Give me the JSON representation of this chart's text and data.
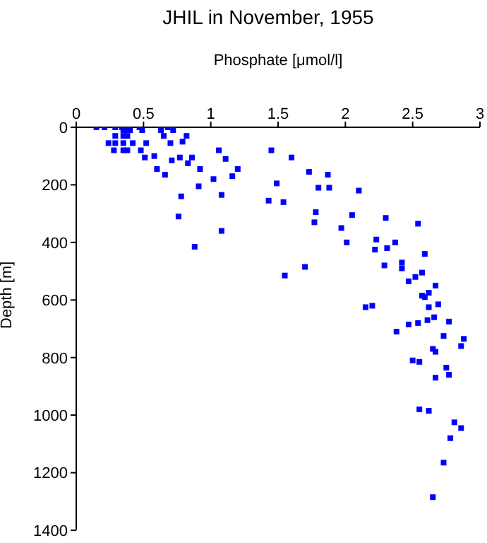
{
  "chart_data": {
    "type": "scatter",
    "title": "JHIL in November, 1955",
    "xlabel": "Phosphate [μmol/l]",
    "ylabel": "Depth [m]",
    "xlim": [
      0,
      3
    ],
    "xticks": [
      0,
      0.5,
      1,
      1.5,
      2,
      2.5,
      3
    ],
    "ylim": [
      1400,
      0
    ],
    "yticks": [
      0,
      200,
      400,
      600,
      800,
      1000,
      1200,
      1400
    ],
    "grid": false,
    "marker": "square",
    "series": [
      {
        "color": "#0000ff",
        "x": [
          0.15,
          0.21,
          0.29,
          0.34,
          0.47,
          0.68,
          0.72,
          0.63,
          0.49,
          0.38,
          0.35,
          0.4,
          0.29,
          0.35,
          0.38,
          0.65,
          0.82,
          0.24,
          0.29,
          0.35,
          0.42,
          0.52,
          0.7,
          0.79,
          0.28,
          0.35,
          0.38,
          0.48,
          1.06,
          1.45,
          0.51,
          0.58,
          0.71,
          0.77,
          0.86,
          0.83,
          1.11,
          0.6,
          0.66,
          0.92,
          1.2,
          1.16,
          1.02,
          0.91,
          1.49,
          0.78,
          1.08,
          1.43,
          0.76,
          1.08,
          0.88,
          1.6,
          1.73,
          1.87,
          1.8,
          1.88,
          2.1,
          1.54,
          1.78,
          2.05,
          1.77,
          2.3,
          2.54,
          1.97,
          2.01,
          2.23,
          2.22,
          2.31,
          2.37,
          2.59,
          1.7,
          1.55,
          2.29,
          2.42,
          2.42,
          2.52,
          2.57,
          2.47,
          2.67,
          2.62,
          2.57,
          2.59,
          2.15,
          2.2,
          2.62,
          2.69,
          2.77,
          2.61,
          2.66,
          2.54,
          2.47,
          2.38,
          2.73,
          2.88,
          2.86,
          2.65,
          2.67,
          2.5,
          2.55,
          2.75,
          2.67,
          2.77,
          2.55,
          2.62,
          2.81,
          2.86,
          2.78,
          2.73,
          2.65
        ],
        "values": [
          0,
          0,
          0,
          0,
          0,
          0,
          10,
          10,
          10,
          10,
          10,
          10,
          30,
          30,
          30,
          30,
          30,
          55,
          55,
          55,
          55,
          55,
          55,
          50,
          80,
          80,
          80,
          80,
          80,
          80,
          105,
          100,
          115,
          105,
          105,
          125,
          110,
          145,
          165,
          145,
          145,
          170,
          180,
          205,
          195,
          240,
          235,
          255,
          310,
          360,
          415,
          105,
          155,
          165,
          210,
          210,
          220,
          260,
          295,
          305,
          330,
          315,
          335,
          350,
          400,
          390,
          425,
          420,
          400,
          440,
          485,
          515,
          480,
          470,
          490,
          520,
          505,
          535,
          550,
          575,
          585,
          590,
          625,
          620,
          625,
          615,
          675,
          670,
          660,
          680,
          685,
          710,
          725,
          735,
          760,
          770,
          780,
          810,
          815,
          835,
          870,
          860,
          980,
          985,
          1025,
          1045,
          1080,
          1165,
          1285
        ]
      }
    ]
  }
}
